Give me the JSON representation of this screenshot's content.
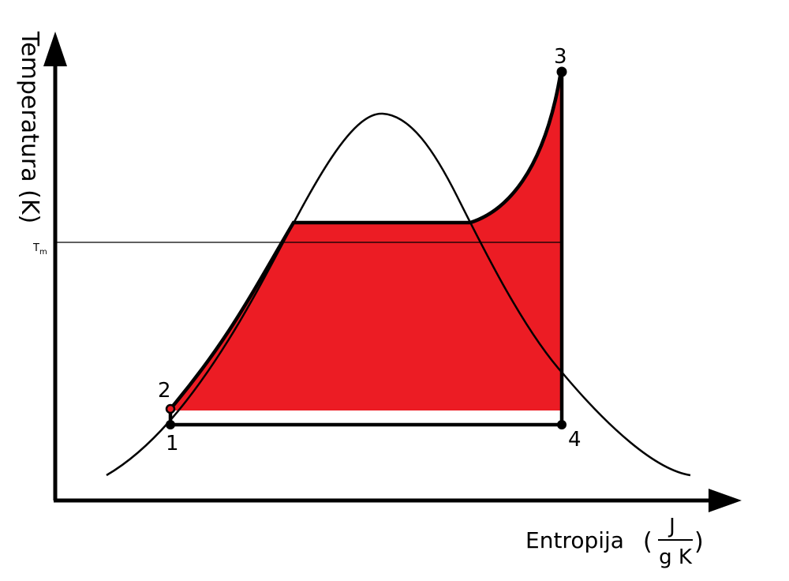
{
  "axes": {
    "y_label": "Temperatura  (K)",
    "x_label": "Entropija",
    "x_unit_numerator": "J",
    "x_unit_denominator": "g K",
    "open_paren": "(",
    "close_paren": ")"
  },
  "reference_line": {
    "label": "T",
    "label_sub": "m"
  },
  "points": [
    {
      "id": "1",
      "label": "1"
    },
    {
      "id": "2",
      "label": "2"
    },
    {
      "id": "3",
      "label": "3"
    },
    {
      "id": "4",
      "label": "4"
    }
  ],
  "colors": {
    "fill": "#ec1c24",
    "line": "#000000",
    "background": "#ffffff"
  }
}
